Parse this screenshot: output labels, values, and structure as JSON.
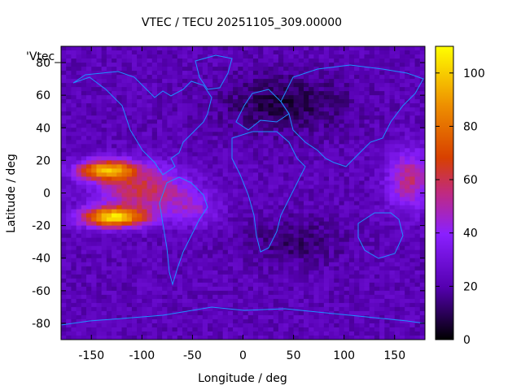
{
  "chart_data": {
    "type": "heatmap",
    "title": "VTEC / TECU 20251105_309.00000",
    "xlabel": "Longitude / deg",
    "ylabel": "Latitude / deg",
    "xlim": [
      -180,
      180
    ],
    "ylim": [
      -90,
      90
    ],
    "xticks": [
      -150,
      -100,
      -50,
      0,
      50,
      100,
      150
    ],
    "yticks": [
      -80,
      -60,
      -40,
      -20,
      0,
      20,
      40,
      60,
      80
    ],
    "colorbar": {
      "range": [
        0,
        110
      ],
      "ticks": [
        0,
        20,
        40,
        60,
        80,
        100
      ],
      "palette": "black-purple-red-orange-yellow",
      "colors": [
        "#000000",
        "#5500b0",
        "#8a20ff",
        "#c02a80",
        "#d84000",
        "#ee9000",
        "#ffff00"
      ]
    },
    "legend": {
      "entry": "'Vtec_",
      "placement": "top-left"
    },
    "coastline_color": "#1e90ff",
    "grid": false
  }
}
